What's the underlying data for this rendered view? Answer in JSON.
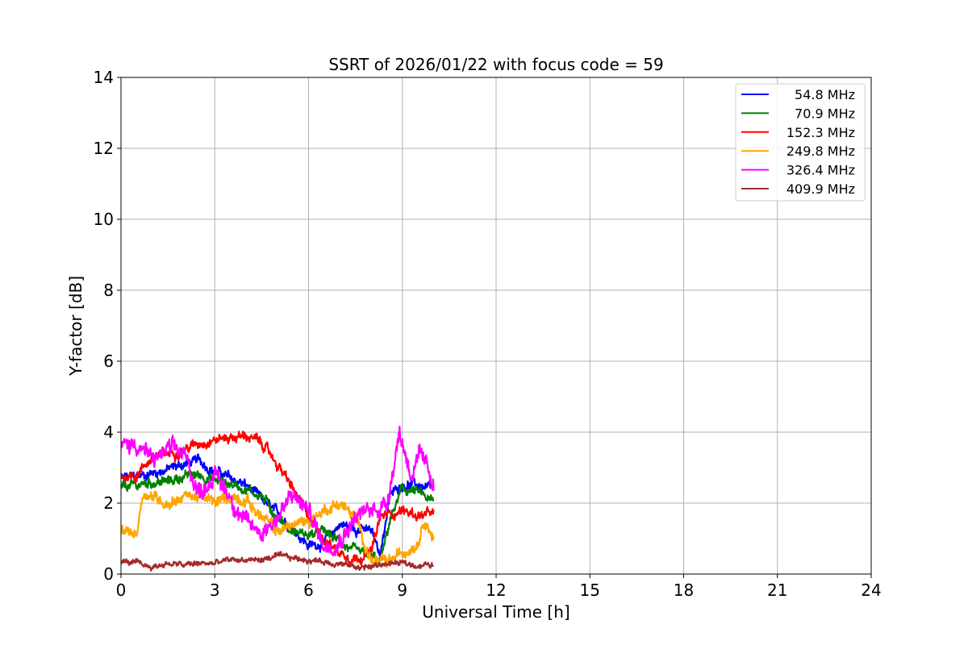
{
  "chart_data": {
    "type": "line",
    "title": "SSRT of 2026/01/22 with focus code = 59",
    "xlabel": "Universal Time [h]",
    "ylabel": "Y-factor [dB]",
    "xlim": [
      0,
      24
    ],
    "ylim": [
      0,
      14
    ],
    "xticks": [
      "0",
      "3",
      "6",
      "9",
      "12",
      "15",
      "18",
      "21",
      "24"
    ],
    "yticks": [
      "0",
      "2",
      "4",
      "6",
      "8",
      "10",
      "12",
      "14"
    ],
    "grid": true,
    "legend_position": "top-right",
    "series": [
      {
        "name": " 54.8 MHz",
        "color": "#0000ff",
        "noise": 0.12,
        "x": [
          0,
          0.5,
          1,
          1.5,
          2,
          2.5,
          3,
          3.5,
          4,
          4.5,
          5,
          5.5,
          6,
          6.5,
          7,
          7.5,
          8,
          8.3,
          8.6,
          9,
          9.5,
          10
        ],
        "y": [
          2.7,
          2.75,
          2.85,
          2.95,
          3.1,
          3.2,
          2.9,
          2.7,
          2.5,
          2.1,
          1.7,
          1.3,
          0.8,
          0.9,
          1.4,
          1.3,
          1.2,
          0.6,
          2.2,
          2.55,
          2.5,
          2.35
        ]
      },
      {
        "name": " 70.9 MHz",
        "color": "#008000",
        "noise": 0.12,
        "x": [
          0,
          0.5,
          1,
          1.5,
          2,
          2.5,
          3,
          3.5,
          4,
          4.5,
          5,
          5.5,
          6,
          6.5,
          7,
          7.5,
          8,
          8.3,
          8.6,
          9,
          9.5,
          10
        ],
        "y": [
          2.45,
          2.5,
          2.6,
          2.6,
          2.75,
          2.8,
          2.65,
          2.55,
          2.4,
          2.2,
          1.6,
          1.2,
          1.1,
          1.2,
          0.9,
          0.6,
          0.5,
          0.3,
          1.5,
          2.4,
          2.3,
          2.0
        ]
      },
      {
        "name": "152.3 MHz",
        "color": "#ff0000",
        "noise": 0.12,
        "x": [
          0,
          0.5,
          1,
          1.5,
          2,
          2.5,
          3,
          3.5,
          4,
          4.5,
          5,
          5.5,
          6,
          6.5,
          7,
          7.5,
          8,
          8.3,
          8.6,
          9,
          9.5,
          10
        ],
        "y": [
          2.75,
          2.8,
          3.3,
          3.4,
          3.5,
          3.7,
          3.8,
          3.85,
          3.9,
          3.7,
          3.1,
          2.4,
          1.6,
          1.0,
          0.6,
          0.45,
          0.6,
          1.6,
          1.7,
          1.8,
          1.65,
          1.7
        ]
      },
      {
        "name": "249.8 MHz",
        "color": "#ffa500",
        "noise": 0.14,
        "x": [
          0,
          0.5,
          0.7,
          1,
          1.5,
          2,
          2.5,
          3,
          3.5,
          4,
          4.5,
          5,
          5.5,
          6,
          6.5,
          7,
          7.5,
          8,
          8.5,
          9,
          9.5,
          9.7,
          10
        ],
        "y": [
          1.2,
          1.15,
          2.3,
          2.2,
          2.0,
          2.2,
          2.2,
          2.0,
          2.2,
          2.1,
          1.6,
          1.2,
          1.4,
          1.5,
          1.8,
          2.0,
          1.6,
          0.4,
          0.3,
          0.6,
          0.9,
          1.6,
          1.0
        ]
      },
      {
        "name": "326.4 MHz",
        "color": "#ff00ff",
        "noise": 0.22,
        "x": [
          0,
          0.5,
          1,
          1.5,
          2,
          2.5,
          3,
          3.5,
          4,
          4.5,
          5,
          5.5,
          6,
          6.5,
          7,
          7.5,
          8,
          8.5,
          8.9,
          9.3,
          9.6,
          10
        ],
        "y": [
          3.6,
          3.7,
          3.2,
          3.5,
          3.4,
          2.3,
          2.8,
          2.2,
          1.4,
          1.2,
          1.6,
          2.2,
          1.8,
          0.8,
          1.0,
          1.6,
          1.8,
          2.0,
          4.0,
          2.8,
          3.3,
          2.6
        ]
      },
      {
        "name": "409.9 MHz",
        "color": "#a52a2a",
        "noise": 0.07,
        "x": [
          0,
          0.5,
          1,
          1.5,
          2,
          2.5,
          3,
          3.5,
          4,
          4.5,
          5,
          5.5,
          6,
          6.5,
          7,
          7.5,
          8,
          8.5,
          9,
          9.5,
          10
        ],
        "y": [
          0.35,
          0.3,
          0.2,
          0.3,
          0.25,
          0.3,
          0.3,
          0.4,
          0.4,
          0.4,
          0.5,
          0.45,
          0.4,
          0.35,
          0.3,
          0.2,
          0.2,
          0.3,
          0.3,
          0.25,
          0.25
        ]
      }
    ]
  }
}
